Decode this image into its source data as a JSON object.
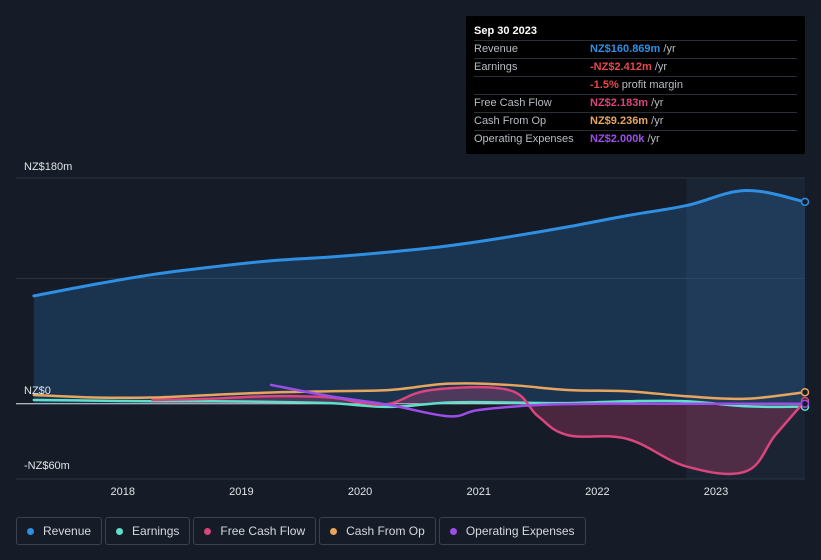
{
  "tooltip": {
    "date": "Sep 30 2023",
    "rows": [
      {
        "label": "Revenue",
        "value": "NZ$160.869m",
        "unit": " /yr",
        "color": "#2e8fe3"
      },
      {
        "label": "Earnings",
        "value": "-NZ$2.412m",
        "unit": " /yr",
        "color": "#e5484d"
      },
      {
        "label": "",
        "value": "-1.5%",
        "unit": " profit margin",
        "color": "#e5484d"
      },
      {
        "label": "Free Cash Flow",
        "value": "NZ$2.183m",
        "unit": " /yr",
        "color": "#d9457c"
      },
      {
        "label": "Cash From Op",
        "value": "NZ$9.236m",
        "unit": " /yr",
        "color": "#e8a55e"
      },
      {
        "label": "Operating Expenses",
        "value": "NZ$2.000k",
        "unit": " /yr",
        "color": "#9d4ee8"
      }
    ]
  },
  "chart_data": {
    "type": "line",
    "title": "",
    "xlabel": "",
    "ylabel": "",
    "ylim": [
      -60,
      180
    ],
    "y_tick_labels": [
      "NZ$180m",
      "NZ$0",
      "-NZ$60m"
    ],
    "x_tick_labels": [
      "2018",
      "2019",
      "2020",
      "2021",
      "2022",
      "2023"
    ],
    "x_ticks": [
      2018,
      2019,
      2020,
      2021,
      2022,
      2023
    ],
    "xlim": [
      2017.1,
      2023.75
    ],
    "forecast_from": 2022.75,
    "series": [
      {
        "name": "Revenue",
        "color": "#2e8fe3",
        "area": true,
        "x": [
          2017.25,
          2017.75,
          2018.25,
          2018.75,
          2019.25,
          2019.75,
          2020.25,
          2020.75,
          2021.25,
          2021.75,
          2022.25,
          2022.75,
          2023.25,
          2023.75
        ],
        "y": [
          86,
          95,
          103,
          109,
          114,
          117,
          121,
          126,
          133,
          141,
          150,
          158,
          170,
          161
        ]
      },
      {
        "name": "Earnings",
        "color": "#5ee0c8",
        "x": [
          2017.25,
          2017.75,
          2018.25,
          2018.75,
          2019.25,
          2019.75,
          2020.25,
          2020.75,
          2021.25,
          2021.75,
          2022.25,
          2022.75,
          2023.25,
          2023.75
        ],
        "y": [
          3,
          2.5,
          2,
          2,
          1.5,
          0.5,
          -2.5,
          1,
          1,
          0.5,
          2,
          2,
          -2,
          -2.4
        ]
      },
      {
        "name": "Free Cash Flow",
        "color": "#d9457c",
        "area": true,
        "x": [
          2018.25,
          2018.75,
          2019.25,
          2019.75,
          2020.0,
          2020.25,
          2020.6,
          2021.25,
          2021.5,
          2021.75,
          2022.25,
          2022.75,
          2023.25,
          2023.5,
          2023.75
        ],
        "y": [
          3,
          4,
          6,
          5,
          1,
          0,
          11,
          11,
          -10,
          -25,
          -28,
          -50,
          -54,
          -25,
          2.2
        ]
      },
      {
        "name": "Cash From Op",
        "color": "#e8a55e",
        "x": [
          2017.25,
          2017.75,
          2018.25,
          2018.75,
          2019.25,
          2019.75,
          2020.25,
          2020.75,
          2021.25,
          2021.75,
          2022.25,
          2022.75,
          2023.25,
          2023.75
        ],
        "y": [
          7,
          5,
          5,
          7,
          9,
          10,
          11,
          16,
          15,
          11,
          10,
          6,
          4,
          9.2
        ]
      },
      {
        "name": "Operating Expenses",
        "color": "#9d4ee8",
        "x": [
          2019.25,
          2019.75,
          2020.25,
          2020.75,
          2021.0,
          2021.5,
          2022.0,
          2022.5,
          2023.0,
          2023.75
        ],
        "y": [
          15,
          6,
          -1,
          -10,
          -5,
          -1,
          0,
          0,
          0,
          0
        ]
      }
    ]
  },
  "legend": [
    {
      "label": "Revenue",
      "color": "#2e8fe3"
    },
    {
      "label": "Earnings",
      "color": "#5ee0c8"
    },
    {
      "label": "Free Cash Flow",
      "color": "#d9457c"
    },
    {
      "label": "Cash From Op",
      "color": "#e8a55e"
    },
    {
      "label": "Operating Expenses",
      "color": "#9d4ee8"
    }
  ]
}
